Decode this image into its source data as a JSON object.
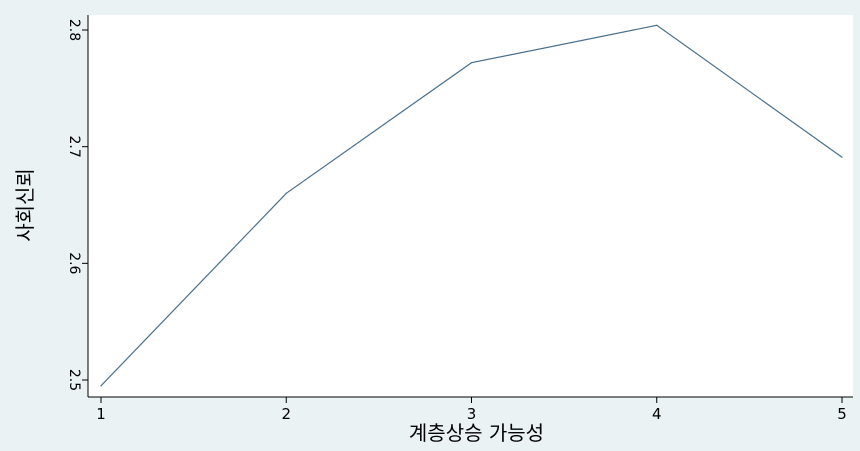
{
  "chart_data": {
    "type": "line",
    "title": "",
    "xlabel": "계층상승 가능성",
    "ylabel": "사회신뢰",
    "x": [
      1,
      2,
      3,
      4,
      5
    ],
    "series": [
      {
        "values": [
          2.495,
          2.66,
          2.772,
          2.804,
          2.691
        ]
      }
    ],
    "xlim": [
      1,
      5
    ],
    "ylim": [
      2.5,
      2.8
    ],
    "xticks": [
      1,
      2,
      3,
      4,
      5
    ],
    "yticks": [
      2.5,
      2.6,
      2.7,
      2.8
    ],
    "grid": false,
    "legend": "none",
    "colors": {
      "line": "#4a6f8a",
      "plot_background": "#ffffff",
      "background": "#eaf2f3",
      "axis": "#000000"
    }
  }
}
